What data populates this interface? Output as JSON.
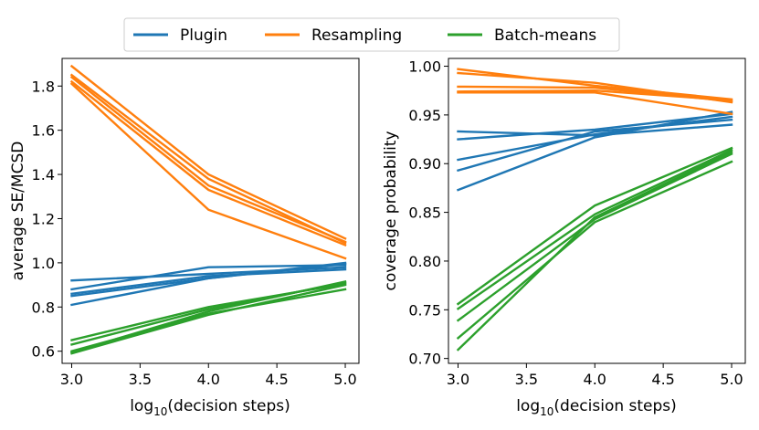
{
  "legend": {
    "placement": "top-center",
    "entries": [
      {
        "label": "Plugin",
        "color": "#1f77b4"
      },
      {
        "label": "Resampling",
        "color": "#ff7f0e"
      },
      {
        "label": "Batch-means",
        "color": "#2ca02c"
      }
    ]
  },
  "chart_data": [
    {
      "type": "line",
      "title": "",
      "xlabel": "log10(decision steps)",
      "xlabel_base": "log",
      "xlabel_sub": "10",
      "xlabel_rest": "(decision steps)",
      "ylabel": "average SE/MCSD",
      "xlim": [
        2.93,
        5.1
      ],
      "ylim": [
        0.545,
        1.925
      ],
      "xticks": [
        3.0,
        3.5,
        4.0,
        4.5,
        5.0
      ],
      "xtick_labels": [
        "3.0",
        "3.5",
        "4.0",
        "4.5",
        "5.0"
      ],
      "yticks": [
        0.6,
        0.8,
        1.0,
        1.2,
        1.4,
        1.6,
        1.8
      ],
      "ytick_labels": [
        "0.6",
        "0.8",
        "1.0",
        "1.2",
        "1.4",
        "1.6",
        "1.8"
      ],
      "x": [
        3,
        4,
        5
      ],
      "series": [
        {
          "name": "Plugin",
          "color": "#1f77b4",
          "values": [
            0.92,
            0.95,
            0.98
          ]
        },
        {
          "name": "Plugin",
          "color": "#1f77b4",
          "values": [
            0.88,
            0.98,
            0.99
          ]
        },
        {
          "name": "Plugin",
          "color": "#1f77b4",
          "values": [
            0.86,
            0.94,
            0.97
          ]
        },
        {
          "name": "Plugin",
          "color": "#1f77b4",
          "values": [
            0.85,
            0.93,
            0.995
          ]
        },
        {
          "name": "Plugin",
          "color": "#1f77b4",
          "values": [
            0.81,
            0.93,
            1.0
          ]
        },
        {
          "name": "Resampling",
          "color": "#ff7f0e",
          "values": [
            1.89,
            1.4,
            1.11
          ]
        },
        {
          "name": "Resampling",
          "color": "#ff7f0e",
          "values": [
            1.85,
            1.38,
            1.09
          ]
        },
        {
          "name": "Resampling",
          "color": "#ff7f0e",
          "values": [
            1.84,
            1.35,
            1.095
          ]
        },
        {
          "name": "Resampling",
          "color": "#ff7f0e",
          "values": [
            1.82,
            1.33,
            1.08
          ]
        },
        {
          "name": "Resampling",
          "color": "#ff7f0e",
          "values": [
            1.81,
            1.24,
            1.02
          ]
        },
        {
          "name": "Batch-means",
          "color": "#2ca02c",
          "values": [
            0.65,
            0.8,
            0.905
          ]
        },
        {
          "name": "Batch-means",
          "color": "#2ca02c",
          "values": [
            0.63,
            0.79,
            0.91
          ]
        },
        {
          "name": "Batch-means",
          "color": "#2ca02c",
          "values": [
            0.6,
            0.77,
            0.88
          ]
        },
        {
          "name": "Batch-means",
          "color": "#2ca02c",
          "values": [
            0.595,
            0.78,
            0.915
          ]
        },
        {
          "name": "Batch-means",
          "color": "#2ca02c",
          "values": [
            0.59,
            0.765,
            0.9
          ]
        }
      ]
    },
    {
      "type": "line",
      "title": "",
      "xlabel": "log10(decision steps)",
      "xlabel_base": "log",
      "xlabel_sub": "10",
      "xlabel_rest": "(decision steps)",
      "ylabel": "coverage probability",
      "xlim": [
        2.93,
        5.1
      ],
      "ylim": [
        0.695,
        1.008
      ],
      "xticks": [
        3.0,
        3.5,
        4.0,
        4.5,
        5.0
      ],
      "xtick_labels": [
        "3.0",
        "3.5",
        "4.0",
        "4.5",
        "5.0"
      ],
      "yticks": [
        0.7,
        0.75,
        0.8,
        0.85,
        0.9,
        0.95,
        1.0
      ],
      "ytick_labels": [
        "0.70",
        "0.75",
        "0.80",
        "0.85",
        "0.90",
        "0.95",
        "1.00"
      ],
      "x": [
        3,
        4,
        5
      ],
      "series": [
        {
          "name": "Plugin",
          "color": "#1f77b4",
          "values": [
            0.933,
            0.929,
            0.94
          ]
        },
        {
          "name": "Plugin",
          "color": "#1f77b4",
          "values": [
            0.925,
            0.935,
            0.951
          ]
        },
        {
          "name": "Plugin",
          "color": "#1f77b4",
          "values": [
            0.904,
            0.93,
            0.948
          ]
        },
        {
          "name": "Plugin",
          "color": "#1f77b4",
          "values": [
            0.893,
            0.933,
            0.945
          ]
        },
        {
          "name": "Plugin",
          "color": "#1f77b4",
          "values": [
            0.873,
            0.927,
            0.953
          ]
        },
        {
          "name": "Resampling",
          "color": "#ff7f0e",
          "values": [
            0.997,
            0.98,
            0.966
          ]
        },
        {
          "name": "Resampling",
          "color": "#ff7f0e",
          "values": [
            0.993,
            0.983,
            0.963
          ]
        },
        {
          "name": "Resampling",
          "color": "#ff7f0e",
          "values": [
            0.979,
            0.978,
            0.964
          ]
        },
        {
          "name": "Resampling",
          "color": "#ff7f0e",
          "values": [
            0.974,
            0.975,
            0.965
          ]
        },
        {
          "name": "Resampling",
          "color": "#ff7f0e",
          "values": [
            0.973,
            0.973,
            0.951
          ]
        },
        {
          "name": "Batch-means",
          "color": "#2ca02c",
          "values": [
            0.756,
            0.857,
            0.916
          ]
        },
        {
          "name": "Batch-means",
          "color": "#2ca02c",
          "values": [
            0.751,
            0.848,
            0.914
          ]
        },
        {
          "name": "Batch-means",
          "color": "#2ca02c",
          "values": [
            0.739,
            0.843,
            0.91
          ]
        },
        {
          "name": "Batch-means",
          "color": "#2ca02c",
          "values": [
            0.721,
            0.84,
            0.902
          ]
        },
        {
          "name": "Batch-means",
          "color": "#2ca02c",
          "values": [
            0.709,
            0.845,
            0.912
          ]
        }
      ]
    }
  ]
}
